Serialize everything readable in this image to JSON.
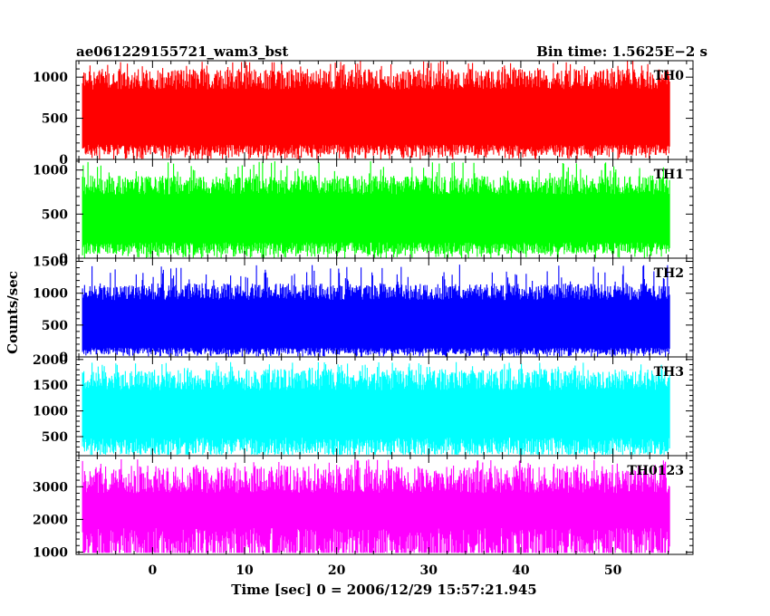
{
  "header": {
    "title": "ae061229155721_wam3_bst",
    "bin_time": "Bin time: 1.5625E−2 s"
  },
  "chart_data": {
    "type": "line",
    "shared_x": {
      "xlabel": "Time [sec] 0 = 2006/12/29 15:57:21.945",
      "xlim": [
        -8.3,
        58.7
      ],
      "ticks": [
        0,
        10,
        20,
        30,
        40,
        50
      ],
      "data_range": [
        -7.6,
        56.2
      ]
    },
    "ylabel": "Counts/sec",
    "panels": [
      {
        "name": "TH0",
        "color": "#ff0000",
        "ylim": [
          0,
          1200
        ],
        "ticks": [
          0,
          500,
          1000
        ],
        "band": {
          "low": 150,
          "high": 1000,
          "min": 0,
          "max": 1200
        }
      },
      {
        "name": "TH1",
        "color": "#00ff00",
        "ylim": [
          0,
          1120
        ],
        "ticks": [
          0,
          500,
          1000
        ],
        "band": {
          "low": 150,
          "high": 850,
          "min": 0,
          "max": 1100
        }
      },
      {
        "name": "TH2",
        "color": "#0000ff",
        "ylim": [
          0,
          1550
        ],
        "ticks": [
          0,
          500,
          1000,
          1500
        ],
        "band": {
          "low": 120,
          "high": 1050,
          "min": 0,
          "max": 1450
        }
      },
      {
        "name": "TH3",
        "color": "#00ffff",
        "ylim": [
          130,
          2050
        ],
        "ticks": [
          500,
          1000,
          1500,
          2000
        ],
        "band": {
          "low": 400,
          "high": 1650,
          "min": 150,
          "max": 1950
        }
      },
      {
        "name": "TH0123",
        "color": "#ff00ff",
        "ylim": [
          930,
          3950
        ],
        "ticks": [
          1000,
          2000,
          3000
        ],
        "band": {
          "low": 1450,
          "high": 3300,
          "min": 980,
          "max": 3850
        }
      }
    ]
  }
}
